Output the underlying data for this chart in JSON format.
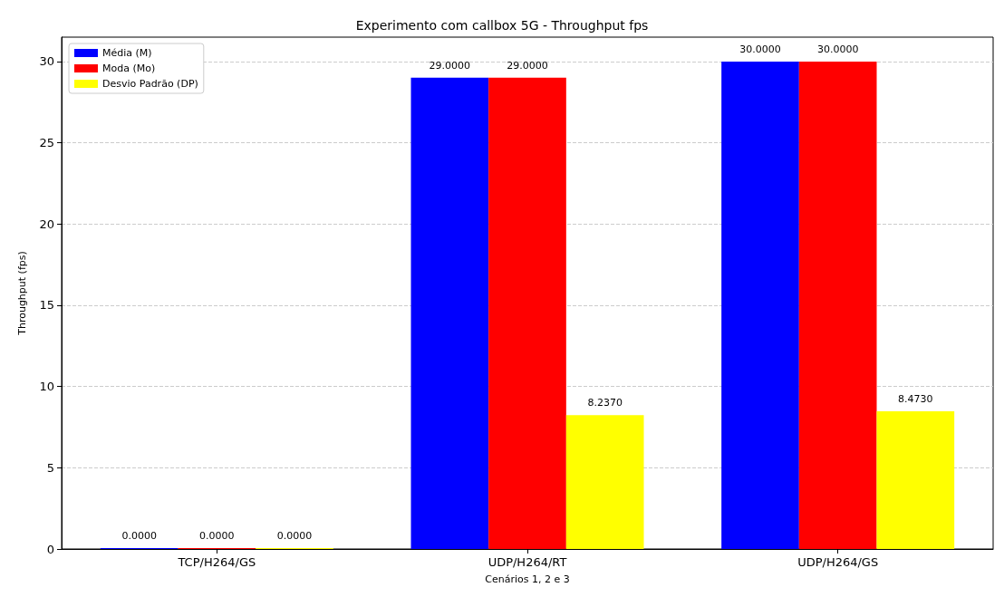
{
  "chart_data": {
    "type": "bar",
    "title": "Experimento com callbox 5G - Throughput fps",
    "xlabel": "Cenários 1, 2 e 3",
    "ylabel": "Throughput (fps)",
    "categories": [
      "TCP/H264/GS",
      "UDP/H264/RT",
      "UDP/H264/GS"
    ],
    "series": [
      {
        "name": "Média (M)",
        "color": "#0000ff",
        "values": [
          0,
          29,
          30
        ],
        "value_labels": [
          "0.0000",
          "29.0000",
          "30.0000"
        ]
      },
      {
        "name": "Moda (Mo)",
        "color": "#ff0000",
        "values": [
          0,
          29,
          30
        ],
        "value_labels": [
          "0.0000",
          "29.0000",
          "30.0000"
        ]
      },
      {
        "name": "Desvio Padrão (DP)",
        "color": "#ffff00",
        "values": [
          0,
          8.237,
          8.473
        ],
        "value_labels": [
          "0.0000",
          "8.2370",
          "8.4730"
        ]
      }
    ],
    "ylim": [
      0,
      31.5
    ],
    "yticks": [
      0,
      5,
      10,
      15,
      20,
      25,
      30
    ],
    "grid": "y",
    "legend": "top left"
  }
}
